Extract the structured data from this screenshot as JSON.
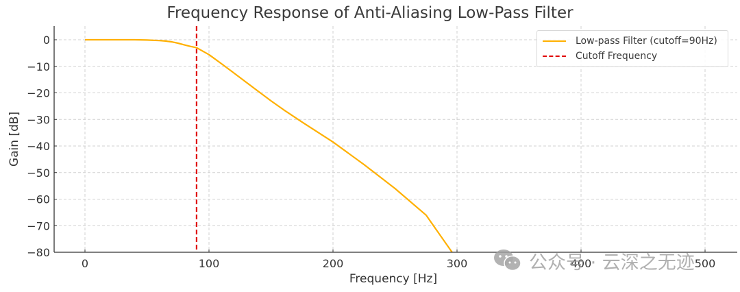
{
  "chart_data": {
    "type": "line",
    "title": "Frequency Response of Anti-Aliasing Low-Pass Filter",
    "xlabel": "Frequency [Hz]",
    "ylabel": "Gain [dB]",
    "xlim": [
      -25,
      525
    ],
    "ylim": [
      -80,
      5
    ],
    "xticks": [
      0,
      100,
      200,
      300,
      400,
      500
    ],
    "yticks": [
      0,
      -10,
      -20,
      -30,
      -40,
      -50,
      -60,
      -70,
      -80
    ],
    "xtick_labels": [
      "0",
      "100",
      "200",
      "300",
      "400",
      "500"
    ],
    "ytick_labels": [
      "0",
      "−10",
      "−20",
      "−30",
      "−40",
      "−50",
      "−60",
      "−70",
      "−80"
    ],
    "grid": true,
    "legend_position": "upper right",
    "series": [
      {
        "name": "Low-pass Filter (cutoff=90Hz)",
        "color": "#FFB000",
        "style": "solid",
        "x": [
          0,
          20,
          40,
          50,
          60,
          65,
          70,
          75,
          80,
          85,
          90,
          95,
          100,
          110,
          120,
          130,
          140,
          150,
          160,
          175,
          200,
          225,
          250,
          275,
          296
        ],
        "y": [
          0,
          0,
          0,
          -0.1,
          -0.3,
          -0.5,
          -0.8,
          -1.3,
          -1.9,
          -2.5,
          -3.0,
          -4.3,
          -5.6,
          -9.0,
          -12.5,
          -16.0,
          -19.5,
          -23.0,
          -26.3,
          -31.0,
          -38.5,
          -47.0,
          -56.0,
          -66.0,
          -80.0
        ]
      },
      {
        "name": "Cutoff Frequency",
        "color": "#E00000",
        "style": "dashed",
        "vline_x": 90
      }
    ]
  },
  "watermark": {
    "text": "公众号 · 云深之无迹",
    "icon": "wechat-icon"
  }
}
